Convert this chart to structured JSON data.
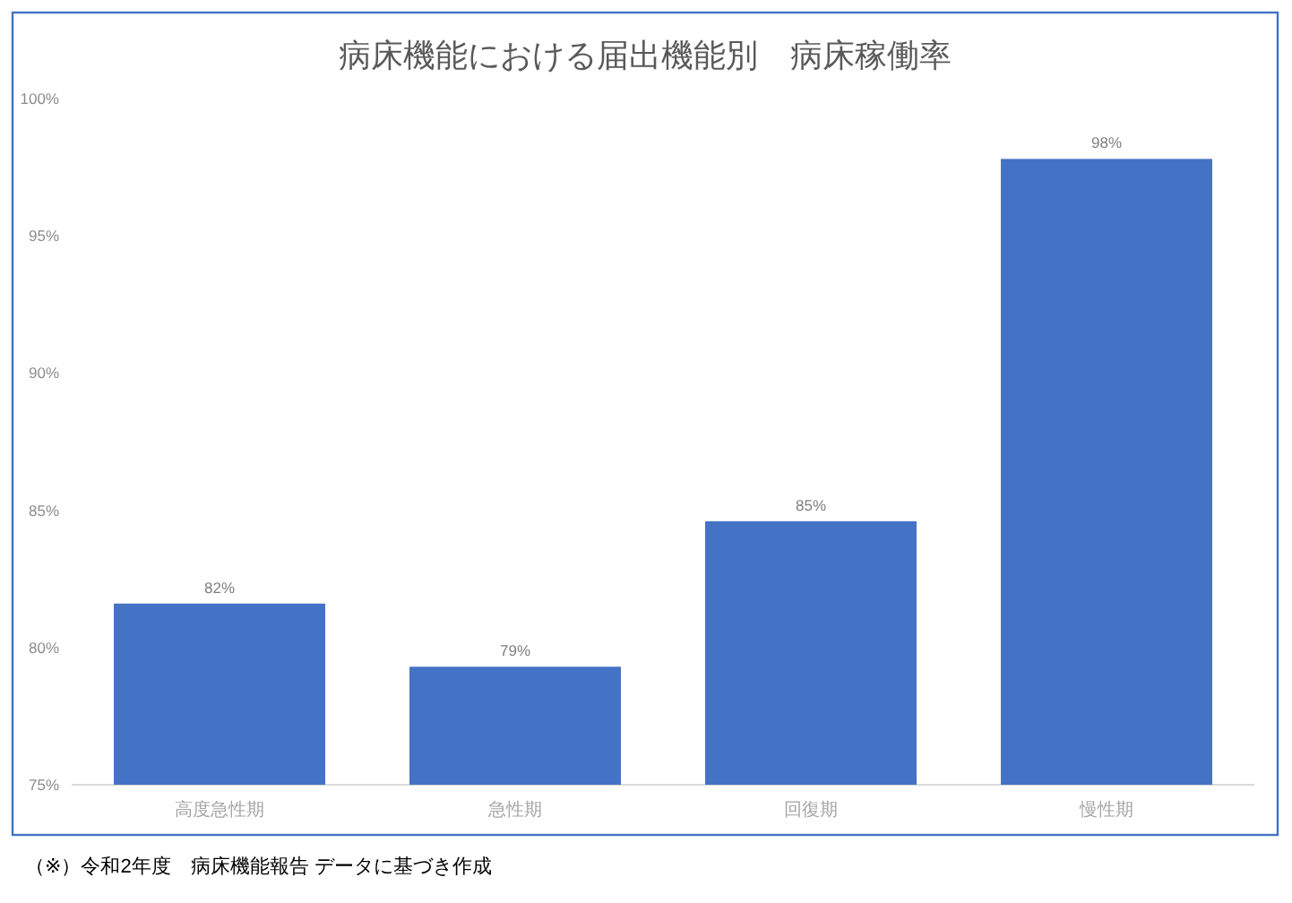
{
  "chart_data": {
    "type": "bar",
    "title": "病床機能における届出機能別　病床稼働率",
    "categories": [
      "高度急性期",
      "急性期",
      "回復期",
      "慢性期"
    ],
    "values": [
      81.6,
      79.3,
      84.6,
      97.8
    ],
    "color": "#4472c4",
    "value_labels": [
      "82%",
      "79%",
      "85%",
      "98%"
    ],
    "ylim": [
      75,
      100
    ],
    "yticks": [
      {
        "value": 75,
        "label": "75%"
      },
      {
        "value": 80,
        "label": "80%"
      },
      {
        "value": 85,
        "label": "85%"
      },
      {
        "value": 90,
        "label": "90%"
      },
      {
        "value": 95,
        "label": "95%"
      },
      {
        "value": 100,
        "label": "100%"
      }
    ],
    "annotations": [
      "（※）令和2年度　病床機能報告 データに基づき作成"
    ]
  }
}
